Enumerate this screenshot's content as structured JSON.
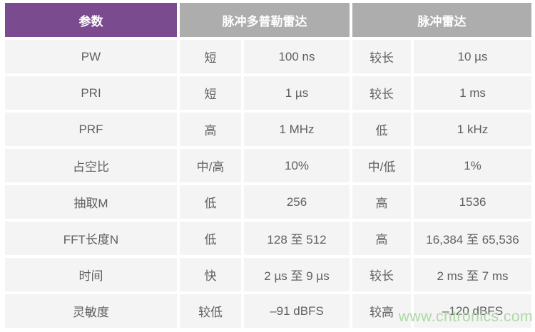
{
  "colors": {
    "header_param_bg": "#7b4b8f",
    "header_radar_bg": "#adadad",
    "header_text": "#ffffff",
    "cell_bg": "#f5f4f5",
    "cell_text": "#606060",
    "gutter": "#ffffff",
    "watermark_text_color": "#abd9a3"
  },
  "table": {
    "headers": {
      "param": "参数",
      "pulse_doppler": "脉冲多普勒雷达",
      "pulse": "脉冲雷达"
    },
    "rows": [
      {
        "param": "PW",
        "pd_level": "短",
        "pd_value": "100 ns",
        "p_level": "较长",
        "p_value": "10 µs"
      },
      {
        "param": "PRI",
        "pd_level": "短",
        "pd_value": "1 µs",
        "p_level": "较长",
        "p_value": "1 ms"
      },
      {
        "param": "PRF",
        "pd_level": "高",
        "pd_value": "1 MHz",
        "p_level": "低",
        "p_value": "1 kHz"
      },
      {
        "param": "占空比",
        "pd_level": "中/高",
        "pd_value": "10%",
        "p_level": "中/低",
        "p_value": "1%"
      },
      {
        "param": "抽取M",
        "pd_level": "低",
        "pd_value": "256",
        "p_level": "高",
        "p_value": "1536"
      },
      {
        "param": "FFT长度N",
        "pd_level": "低",
        "pd_value": "128 至 512",
        "p_level": "高",
        "p_value": "16,384 至 65,536"
      },
      {
        "param": "时间",
        "pd_level": "快",
        "pd_value": "2 µs 至 9 µs",
        "p_level": "较长",
        "p_value": "2 ms 至 7 ms"
      },
      {
        "param": "灵敏度",
        "pd_level": "较低",
        "pd_value": "–91 dBFS",
        "p_level": "较高",
        "p_value": "–120 dBFS"
      }
    ]
  },
  "watermark": {
    "text": "www.cntronics.com"
  }
}
